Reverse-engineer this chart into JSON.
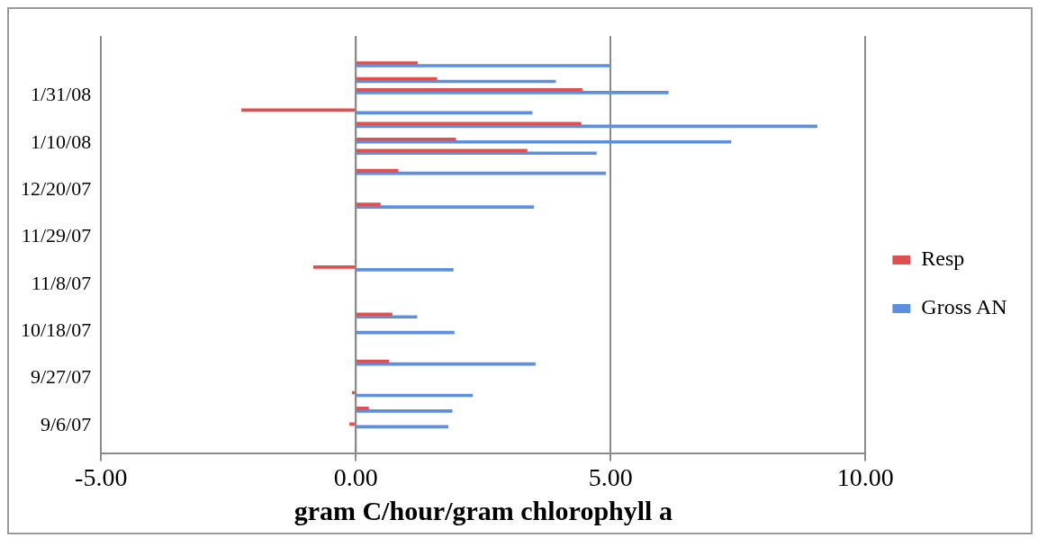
{
  "chart_data": {
    "type": "bar",
    "orientation": "horizontal",
    "xlabel": "gram C/hour/gram chlorophyll a",
    "x": [
      "2007-09-06",
      "2007-09-13",
      "2007-09-20",
      "2007-10-04",
      "2007-10-18",
      "2007-10-25",
      "2007-11-15",
      "2007-12-13",
      "2007-12-28",
      "2008-01-06",
      "2008-01-11",
      "2008-01-18",
      "2008-01-24",
      "2008-02-02",
      "2008-02-07",
      "2008-02-14"
    ],
    "series": [
      {
        "name": "Resp",
        "color": "#e05050",
        "values": [
          -0.12,
          0.25,
          -0.07,
          0.65,
          0,
          0.71,
          -0.83,
          0.48,
          0.83,
          3.36,
          1.96,
          4.42,
          -2.24,
          4.44,
          1.59,
          1.21
        ]
      },
      {
        "name": "Gross AN",
        "color": "#5b8fe0",
        "values": [
          1.81,
          1.89,
          2.29,
          3.52,
          1.93,
          1.2,
          1.91,
          3.49,
          4.9,
          4.72,
          7.36,
          9.05,
          3.46,
          6.13,
          3.92,
          4.98
        ]
      }
    ],
    "xlim": [
      -5,
      10
    ],
    "xticks": [
      {
        "value": -5,
        "label": "-5.00"
      },
      {
        "value": 0,
        "label": "0.00"
      },
      {
        "value": 5,
        "label": "5.00"
      },
      {
        "value": 10,
        "label": "10.00"
      }
    ],
    "ylim": [
      "2007-09-05",
      "2008-02-15"
    ],
    "yticks": [
      {
        "value": "2007-09-06",
        "label": "9/6/07"
      },
      {
        "value": "2007-09-27",
        "label": "9/27/07"
      },
      {
        "value": "2007-10-18",
        "label": "10/18/07"
      },
      {
        "value": "2007-11-08",
        "label": "11/8/07"
      },
      {
        "value": "2007-11-29",
        "label": "11/29/07"
      },
      {
        "value": "2007-12-20",
        "label": "12/20/07"
      },
      {
        "value": "2008-01-10",
        "label": "1/10/08"
      },
      {
        "value": "2008-01-31",
        "label": "1/31/08"
      }
    ],
    "grid": "x",
    "legend": "right"
  }
}
